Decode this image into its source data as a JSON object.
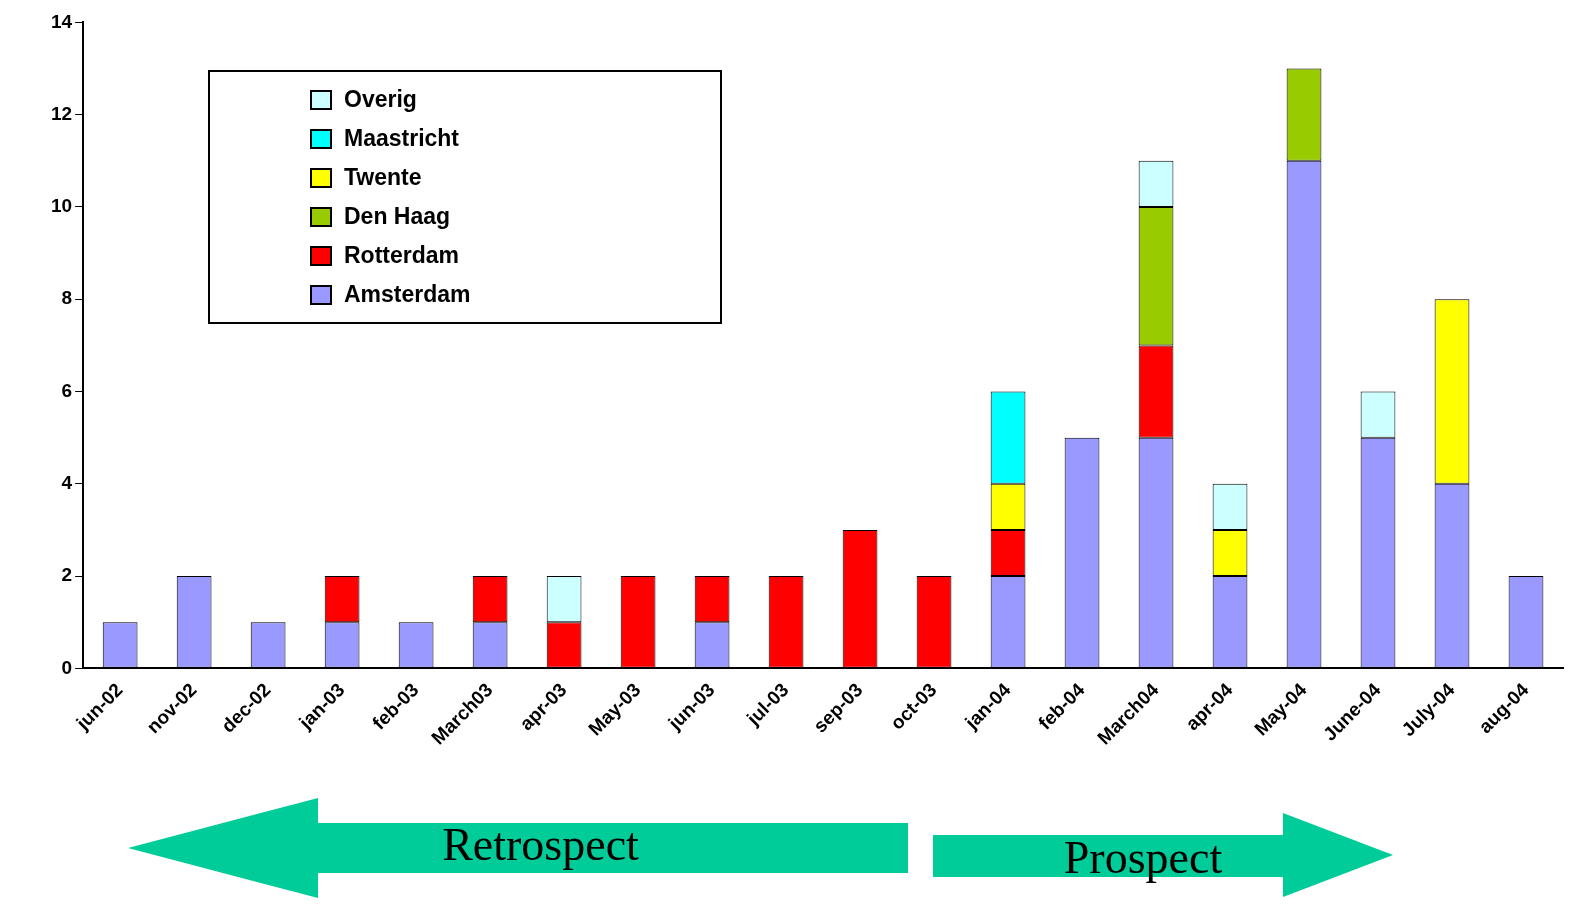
{
  "chart_data": {
    "type": "bar",
    "stacked": true,
    "categories": [
      "jun-02",
      "nov-02",
      "dec-02",
      "jan-03",
      "feb-03",
      "March03",
      "apr-03",
      "May-03",
      "jun-03",
      "jul-03",
      "sep-03",
      "oct-03",
      "jan-04",
      "feb-04",
      "March04",
      "apr-04",
      "May-04",
      "June-04",
      "July-04",
      "aug-04"
    ],
    "series": [
      {
        "name": "Amsterdam",
        "color": "#9999ff",
        "values": [
          1,
          2,
          1,
          1,
          1,
          1,
          0,
          0,
          1,
          0,
          0,
          0,
          2,
          5,
          5,
          2,
          11,
          5,
          4,
          2
        ]
      },
      {
        "name": "Rotterdam",
        "color": "#ff0000",
        "values": [
          0,
          0,
          0,
          1,
          0,
          1,
          1,
          2,
          1,
          2,
          3,
          2,
          1,
          0,
          2,
          0,
          0,
          0,
          0,
          0
        ]
      },
      {
        "name": "Den Haag",
        "color": "#99cc00",
        "values": [
          0,
          0,
          0,
          0,
          0,
          0,
          0,
          0,
          0,
          0,
          0,
          0,
          0,
          0,
          3,
          0,
          2,
          0,
          0,
          0
        ]
      },
      {
        "name": "Twente",
        "color": "#ffff00",
        "values": [
          0,
          0,
          0,
          0,
          0,
          0,
          0,
          0,
          0,
          0,
          0,
          0,
          1,
          0,
          0,
          1,
          0,
          0,
          4,
          0
        ]
      },
      {
        "name": "Maastricht",
        "color": "#00ffff",
        "values": [
          0,
          0,
          0,
          0,
          0,
          0,
          0,
          0,
          0,
          0,
          0,
          0,
          2,
          0,
          0,
          0,
          0,
          0,
          0,
          0
        ]
      },
      {
        "name": "Overig",
        "color": "#ccffff",
        "values": [
          0,
          0,
          0,
          0,
          0,
          0,
          1,
          0,
          0,
          0,
          0,
          0,
          0,
          0,
          1,
          1,
          0,
          1,
          0,
          0
        ]
      }
    ],
    "ylim": [
      0,
      14
    ],
    "yticks": [
      0,
      2,
      4,
      6,
      8,
      10,
      12,
      14
    ],
    "grid": false,
    "legend": "top left",
    "annotations": [
      "Retrospect",
      "Prospect"
    ]
  }
}
